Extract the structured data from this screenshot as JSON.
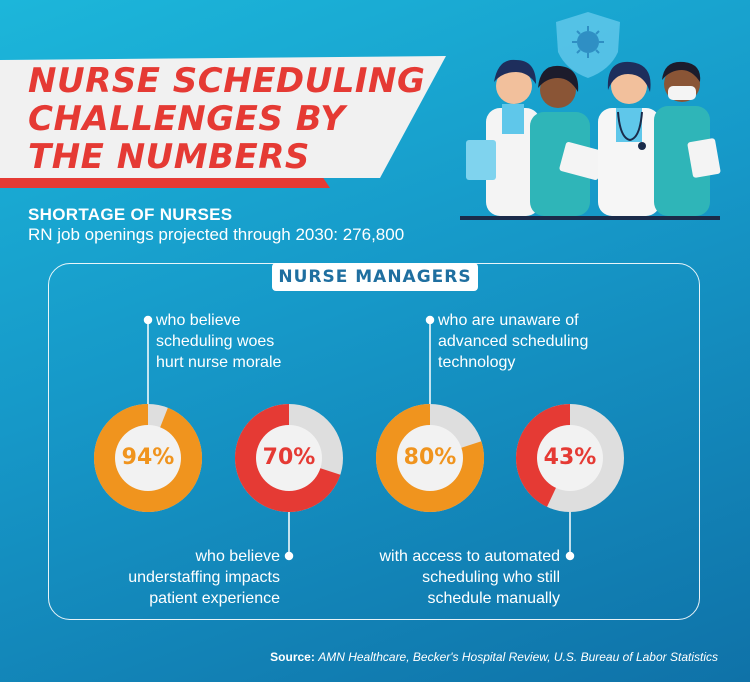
{
  "header": {
    "title": "NURSE SCHEDULING CHALLENGES BY THE NUMBERS"
  },
  "shortage": {
    "heading": "SHORTAGE OF NURSES",
    "line": "RN job openings projected through 2030: 276,800"
  },
  "panel": {
    "label": "NURSE MANAGERS"
  },
  "stats": [
    {
      "value": "94%",
      "fraction": 0.94,
      "description": "who believe scheduling woes hurt nurse morale",
      "color": "#f0941e"
    },
    {
      "value": "70%",
      "fraction": 0.7,
      "description": "who believe understaffing impacts patient experience",
      "color": "#e53a34"
    },
    {
      "value": "80%",
      "fraction": 0.8,
      "description": "who are unaware of advanced scheduling technology",
      "color": "#f0941e"
    },
    {
      "value": "43%",
      "fraction": 0.43,
      "description": "with access to automated scheduling who still schedule manually",
      "color": "#e53a34"
    }
  ],
  "stat_lines": {
    "s0": [
      "who believe",
      "scheduling woes",
      "hurt nurse morale"
    ],
    "s1": [
      "who believe",
      "understaffing impacts",
      "patient experience"
    ],
    "s2": [
      "who are unaware of",
      "advanced scheduling",
      "technology"
    ],
    "s3": [
      "with access to automated",
      "scheduling who still",
      "schedule manually"
    ]
  },
  "source": {
    "label": "Source:",
    "text": "AMN Healthcare, Becker's Hospital Review, U.S. Bureau of Labor Statistics"
  },
  "colors": {
    "title_red": "#e53a34",
    "banner_white": "#f2f2f2",
    "orange": "#f0941e",
    "ring_gray": "#dedede",
    "background_teal": "#1cb6da",
    "background_blue": "#0f72a8"
  },
  "icons": [
    "shield-virus-icon",
    "nurses-illustration"
  ]
}
